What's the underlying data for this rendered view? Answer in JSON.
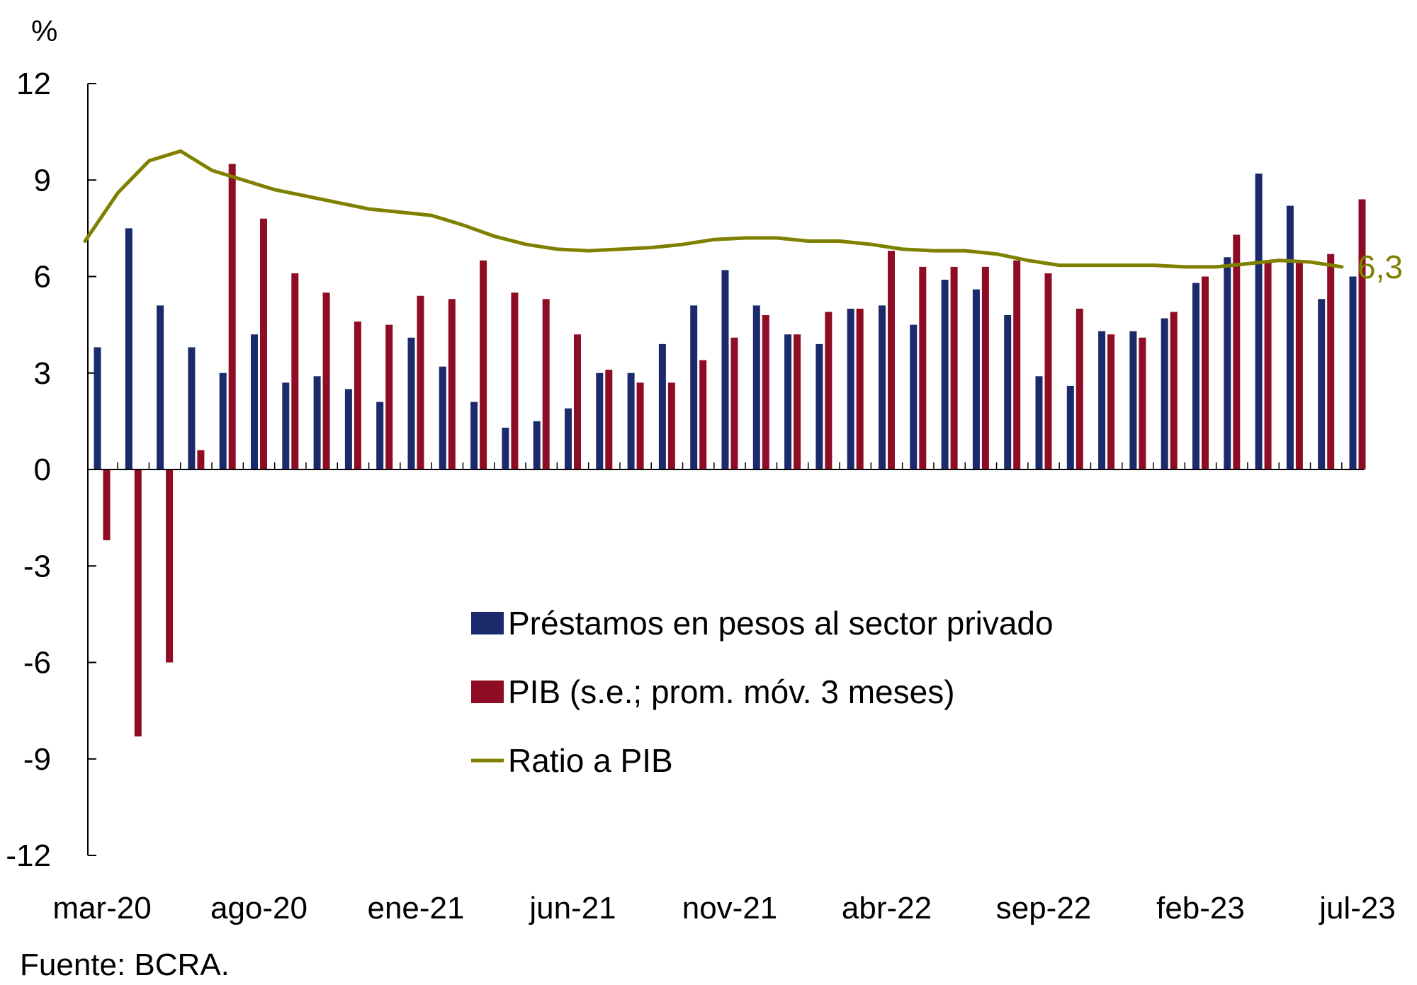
{
  "chart_data": {
    "type": "bar",
    "unit_label": "%",
    "ylim": [
      -12,
      12
    ],
    "yticks": [
      12,
      9,
      6,
      3,
      0,
      -3,
      -6,
      -9,
      -12
    ],
    "ytick_labels": [
      "12",
      "9",
      "6",
      "3",
      "0",
      "-3",
      "-6",
      "-9",
      "-12"
    ],
    "categories": [
      "mar-20",
      "abr-20",
      "may-20",
      "jun-20",
      "jul-20",
      "ago-20",
      "sep-20",
      "oct-20",
      "nov-20",
      "dic-20",
      "ene-21",
      "feb-21",
      "mar-21",
      "abr-21",
      "may-21",
      "jun-21",
      "jul-21",
      "ago-21",
      "sep-21",
      "oct-21",
      "nov-21",
      "dic-21",
      "ene-22",
      "feb-22",
      "mar-22",
      "abr-22",
      "may-22",
      "jun-22",
      "jul-22",
      "ago-22",
      "sep-22",
      "oct-22",
      "nov-22",
      "dic-22",
      "ene-23",
      "feb-23",
      "mar-23",
      "abr-23",
      "may-23",
      "jun-23",
      "jul-23"
    ],
    "xtick_labels": [
      {
        "index": 0,
        "label": "mar-20"
      },
      {
        "index": 5,
        "label": "ago-20"
      },
      {
        "index": 10,
        "label": "ene-21"
      },
      {
        "index": 15,
        "label": "jun-21"
      },
      {
        "index": 20,
        "label": "nov-21"
      },
      {
        "index": 25,
        "label": "abr-22"
      },
      {
        "index": 30,
        "label": "sep-22"
      },
      {
        "index": 35,
        "label": "feb-23"
      },
      {
        "index": 40,
        "label": "jul-23"
      }
    ],
    "series": [
      {
        "name": "Préstamos en pesos al sector privado",
        "kind": "bar",
        "color": "#1b2a6b",
        "values": [
          3.8,
          7.5,
          5.1,
          3.8,
          3.0,
          4.2,
          2.7,
          2.9,
          2.5,
          2.1,
          4.1,
          3.2,
          2.1,
          1.3,
          1.5,
          1.9,
          3.0,
          3.0,
          3.9,
          5.1,
          6.2,
          5.1,
          4.2,
          3.9,
          5.0,
          5.1,
          4.5,
          5.9,
          5.6,
          4.8,
          2.9,
          2.6,
          4.3,
          4.3,
          4.7,
          5.8,
          6.6,
          9.2,
          8.2,
          5.3,
          6.0
        ]
      },
      {
        "name": "PIB (s.e.; prom. móv. 3 meses)",
        "kind": "bar",
        "color": "#8e0c24",
        "values": [
          -2.2,
          -8.3,
          -6.0,
          0.6,
          9.5,
          7.8,
          6.1,
          5.5,
          4.6,
          4.5,
          5.4,
          5.3,
          6.5,
          5.5,
          5.3,
          4.2,
          3.1,
          2.7,
          2.7,
          3.4,
          4.1,
          4.8,
          4.2,
          4.9,
          5.0,
          6.8,
          6.3,
          6.3,
          6.3,
          6.5,
          6.1,
          5.0,
          4.2,
          4.1,
          4.9,
          6.0,
          7.3,
          6.5,
          6.5,
          6.7,
          8.4
        ]
      },
      {
        "name": "Ratio a PIB",
        "kind": "line",
        "color": "#808000",
        "values": [
          7.1,
          8.6,
          9.6,
          9.9,
          9.3,
          9.0,
          8.7,
          8.5,
          8.3,
          8.1,
          8.0,
          7.9,
          7.6,
          7.25,
          7.0,
          6.85,
          6.8,
          6.85,
          6.9,
          7.0,
          7.15,
          7.2,
          7.2,
          7.1,
          7.1,
          7.0,
          6.85,
          6.8,
          6.8,
          6.7,
          6.5,
          6.35,
          6.35,
          6.35,
          6.35,
          6.3,
          6.3,
          6.4,
          6.5,
          6.45,
          6.3
        ]
      }
    ],
    "end_label": "6,3",
    "legend_position": "center",
    "grid": false
  },
  "source_note": "Fuente: BCRA."
}
